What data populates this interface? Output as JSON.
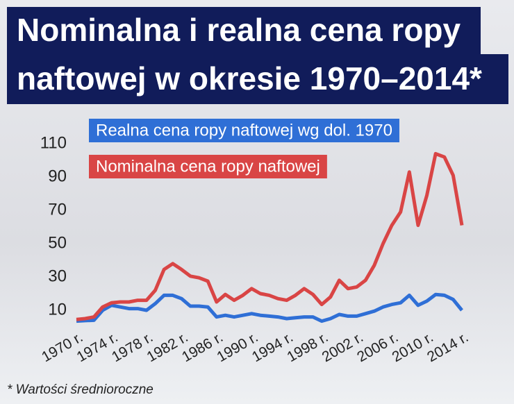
{
  "chart_data": {
    "type": "line",
    "title_line1": "Nominalna i realna cena ropy",
    "title_line2": "naftowej w okresie 1970–2014*",
    "footnote": "* Wartości średnioroczne",
    "x": [
      1970,
      1971,
      1972,
      1973,
      1974,
      1975,
      1976,
      1977,
      1978,
      1979,
      1980,
      1981,
      1982,
      1983,
      1984,
      1985,
      1986,
      1987,
      1988,
      1989,
      1990,
      1991,
      1992,
      1993,
      1994,
      1995,
      1996,
      1997,
      1998,
      1999,
      2000,
      2001,
      2002,
      2003,
      2004,
      2005,
      2006,
      2007,
      2008,
      2009,
      2010,
      2011,
      2012,
      2013,
      2014
    ],
    "xlim": [
      1970,
      2014
    ],
    "xticks": [
      {
        "value": 1970,
        "label": "1970 r."
      },
      {
        "value": 1974,
        "label": "1974 r."
      },
      {
        "value": 1978,
        "label": "1978 r."
      },
      {
        "value": 1982,
        "label": "1982 r."
      },
      {
        "value": 1986,
        "label": "1986 r."
      },
      {
        "value": 1990,
        "label": "1990 r."
      },
      {
        "value": 1994,
        "label": "1994 r."
      },
      {
        "value": 1998,
        "label": "1998 r."
      },
      {
        "value": 2002,
        "label": "2002 r."
      },
      {
        "value": 2006,
        "label": "2006 r."
      },
      {
        "value": 2010,
        "label": "2010 r."
      },
      {
        "value": 2014,
        "label": "2014 r."
      }
    ],
    "ylim": [
      0,
      115
    ],
    "yticks": [
      10,
      30,
      50,
      70,
      90,
      110
    ],
    "series": [
      {
        "name": "Realna cena ropy naftowej wg dol. 1970",
        "color": "#2f6fd6",
        "values": [
          3.5,
          3.8,
          4,
          10,
          13,
          12,
          11,
          11,
          10,
          14,
          19,
          19,
          17,
          12.5,
          12.5,
          12,
          6,
          7,
          6,
          7,
          8,
          7,
          6.5,
          6,
          5,
          5.5,
          6,
          6,
          3.5,
          5,
          7.5,
          6.5,
          6.5,
          8,
          9.5,
          12,
          13.5,
          14.5,
          19,
          13,
          15.5,
          19.5,
          19,
          16.5,
          10
        ]
      },
      {
        "name": "Nominalna cena ropy naftowej",
        "color": "#d94545",
        "values": [
          4.5,
          5,
          6,
          12,
          14.5,
          15,
          15,
          16,
          16,
          22,
          34.5,
          38,
          34.5,
          30.5,
          29.5,
          27.5,
          15,
          19.5,
          16,
          19,
          23,
          20,
          19,
          17,
          16,
          19,
          23,
          19.5,
          13.5,
          18,
          28,
          23,
          24,
          28,
          37,
          50,
          61,
          69,
          93,
          61,
          79,
          104,
          102,
          91,
          61
        ]
      }
    ]
  }
}
